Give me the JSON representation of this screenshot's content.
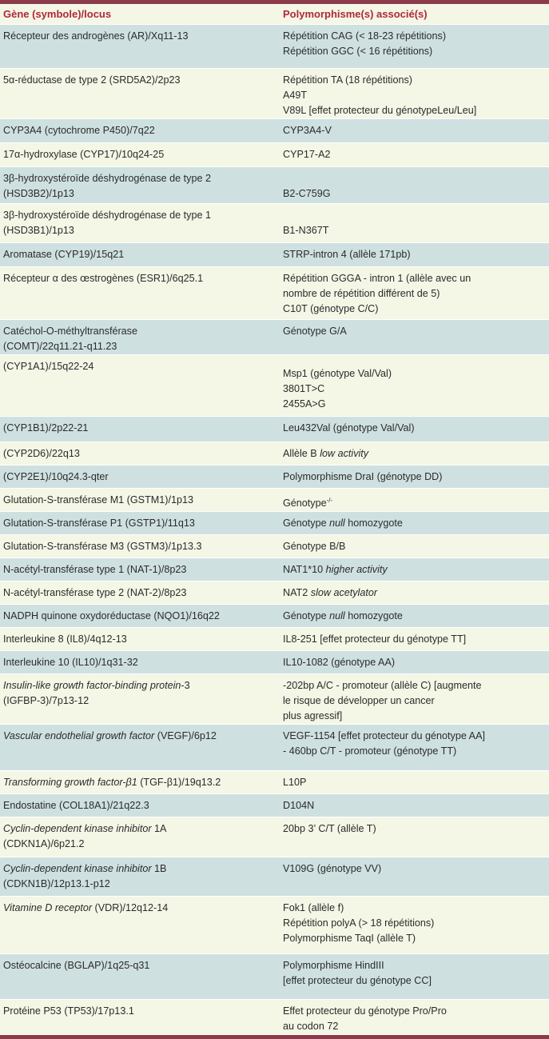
{
  "colors": {
    "band": "#8b3b4a",
    "header_text": "#b0283a",
    "row_blue": "#cfe0e0",
    "row_cream": "#f4f6e6"
  },
  "header": {
    "col1": "Gène (symbole)/locus",
    "col2": "Polymorphisme(s) associé(s)"
  },
  "rows": [
    {
      "gene": [
        "Récepteur des androgènes (AR)/Xq11-13"
      ],
      "poly": [
        "Répétition CAG (< 18-23 répétitions)",
        "Répétition GGC (< 16 répétitions)"
      ]
    },
    {
      "gene": [
        "5α-réductase de type 2 (SRD5A2)/2p23"
      ],
      "poly": [
        "Répétition TA (18 répétitions)",
        "A49T",
        "V89L [effet protecteur du génotypeLeu/Leu]"
      ]
    },
    {
      "gene": [
        "CYP3A4 (cytochrome P450)/7q22"
      ],
      "poly": [
        "CYP3A4-V"
      ]
    },
    {
      "gene": [
        "17α-hydroxylase (CYP17)/10q24-25"
      ],
      "poly": [
        "CYP17-A2"
      ]
    },
    {
      "gene": [
        "3β-hydroxystéroïde déshydrogénase de type 2",
        "(HSD3B2)/1p13"
      ],
      "poly": [
        "",
        "B2-C759G"
      ]
    },
    {
      "gene": [
        "3β-hydroxystéroïde déshydrogénase de type 1",
        "(HSD3B1)/1p13"
      ],
      "poly": [
        "",
        "B1-N367T"
      ]
    },
    {
      "gene": [
        "Aromatase (CYP19)/15q21"
      ],
      "poly": [
        "STRP-intron 4 (allèle 171pb)"
      ]
    },
    {
      "gene": [
        "Récepteur α des œstrogènes (ESR1)/6q25.1"
      ],
      "poly": [
        "Répétition GGGA - intron 1 (allèle avec un",
        "nombre de répétition différent de 5)",
        "C10T (génotype C/C)"
      ]
    },
    {
      "gene": [
        "Catéchol-O-méthyltransférase",
        "(COMT)/22q11.21-q11.23"
      ],
      "poly": [
        "Génotype G/A"
      ]
    },
    {
      "gene": [
        "(CYP1A1)/15q22-24"
      ],
      "poly": [
        "Msp1 (génotype Val/Val)",
        "3801T>C",
        "2455A>G"
      ]
    },
    {
      "gene": [
        "(CYP1B1)/2p22-21"
      ],
      "poly": [
        "Leu432Val (génotype Val/Val)"
      ]
    },
    {
      "gene": [
        "(CYP2D6)/22q13"
      ],
      "poly": [
        [
          {
            "t": "Allèle B "
          },
          {
            "t": "low activity",
            "i": true
          }
        ]
      ]
    },
    {
      "gene": [
        "(CYP2E1)/10q24.3-qter"
      ],
      "poly": [
        "Polymorphisme DraI (génotype DD)"
      ]
    },
    {
      "gene": [
        "Glutation-S-transférase M1 (GSTM1)/1p13"
      ],
      "poly": [
        [
          {
            "t": "Génotype"
          },
          {
            "t": "-/-",
            "sup": true
          }
        ]
      ]
    },
    {
      "gene": [
        "Glutation-S-transférase P1 (GSTP1)/11q13"
      ],
      "poly": [
        [
          {
            "t": "Génotype "
          },
          {
            "t": "null",
            "i": true
          },
          {
            "t": " homozygote"
          }
        ]
      ]
    },
    {
      "gene": [
        "Glutation-S-transférase M3 (GSTM3)/1p13.3"
      ],
      "poly": [
        "Génotype B/B"
      ]
    },
    {
      "gene": [
        "N-acétyl-transférase type 1 (NAT-1)/8p23"
      ],
      "poly": [
        [
          {
            "t": "NAT1*10 "
          },
          {
            "t": "higher activity",
            "i": true
          }
        ]
      ]
    },
    {
      "gene": [
        "N-acétyl-transférase type 2 (NAT-2)/8p23"
      ],
      "poly": [
        [
          {
            "t": "NAT2 "
          },
          {
            "t": "slow acetylator",
            "i": true
          }
        ]
      ]
    },
    {
      "gene": [
        "NADPH quinone oxydoréductase (NQO1)/16q22"
      ],
      "poly": [
        [
          {
            "t": "Génotype "
          },
          {
            "t": "null",
            "i": true
          },
          {
            "t": " homozygote"
          }
        ]
      ]
    },
    {
      "gene": [
        "Interleukine 8 (IL8)/4q12-13"
      ],
      "poly": [
        "IL8-251 [effet protecteur du génotype TT]"
      ]
    },
    {
      "gene": [
        "Interleukine 10 (IL10)/1q31-32"
      ],
      "poly": [
        "IL10-1082 (génotype AA)"
      ]
    },
    {
      "gene": [
        [
          {
            "t": "Insulin-like growth factor-binding protein",
            "i": true
          },
          {
            "t": "-3"
          }
        ],
        "(IGFBP-3)/7p13-12"
      ],
      "poly": [
        "-202bp A/C - promoteur (allèle C) [augmente",
        "le risque de développer un cancer",
        "plus agressif]"
      ]
    },
    {
      "gene": [
        [
          {
            "t": "Vascular endothelial growth factor",
            "i": true
          },
          {
            "t": " (VEGF)/6p12"
          }
        ]
      ],
      "poly": [
        "VEGF-1154 [effet protecteur du génotype AA]",
        "- 460bp C/T - promoteur (génotype TT)"
      ]
    },
    {
      "gene": [
        [
          {
            "t": "Transforming growth factor-β1",
            "i": true
          },
          {
            "t": " (TGF-β1)/19q13.2"
          }
        ]
      ],
      "poly": [
        "L10P"
      ]
    },
    {
      "gene": [
        "Endostatine (COL18A1)/21q22.3"
      ],
      "poly": [
        "D104N"
      ]
    },
    {
      "gene": [
        [
          {
            "t": "Cyclin-dependent kinase inhibitor",
            "i": true
          },
          {
            "t": " 1A"
          }
        ],
        "(CDKN1A)/6p21.2"
      ],
      "poly": [
        "20bp 3’ C/T (allèle T)"
      ]
    },
    {
      "gene": [
        [
          {
            "t": "Cyclin-dependent kinase inhibitor",
            "i": true
          },
          {
            "t": " 1B"
          }
        ],
        "(CDKN1B)/12p13.1-p12"
      ],
      "poly": [
        "V109G (génotype VV)"
      ]
    },
    {
      "gene": [
        [
          {
            "t": "Vitamine D receptor",
            "i": true
          },
          {
            "t": " (VDR)/12q12-14"
          }
        ]
      ],
      "poly": [
        "Fok1 (allèle f)",
        "Répétition polyA (> 18 répétitions)",
        "Polymorphisme TaqI (allèle T)"
      ]
    },
    {
      "gene": [
        "Ostéocalcine (BGLAP)/1q25-q31"
      ],
      "poly": [
        "Polymorphisme HindIII",
        "[effet protecteur du génotype CC]"
      ]
    },
    {
      "gene": [
        "Protéine P53 (TP53)/17p13.1"
      ],
      "poly": [
        "Effet protecteur du génotype Pro/Pro",
        "au codon 72"
      ]
    }
  ]
}
